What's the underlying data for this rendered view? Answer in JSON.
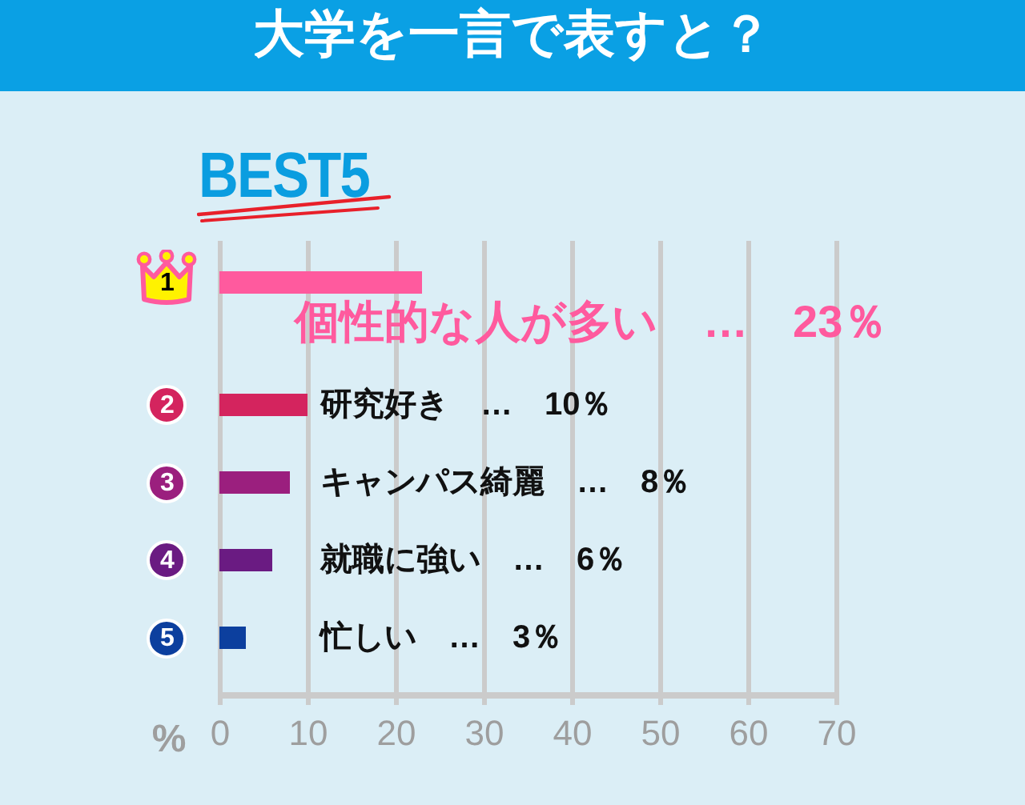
{
  "chart_data": {
    "type": "bar",
    "orientation": "horizontal",
    "title": "大学を一言で表すと？",
    "subtitle": "BEST5",
    "xlabel": "%",
    "categories": [
      "1",
      "2",
      "3",
      "4",
      "5"
    ],
    "values": [
      23,
      10,
      8,
      6,
      3
    ],
    "colors": [
      "#ff5a9e",
      "#d4245e",
      "#9b1f7e",
      "#6a1b82",
      "#0c3f9e"
    ],
    "value_labels": [
      "個性的な人が多い　…　23％",
      "研究好き　…　10％",
      "キャンパス綺麗　…　8％",
      "就職に強い　…　6％",
      "忙しい　…　3％"
    ],
    "xlim": [
      0,
      70
    ],
    "xticks": [
      0,
      10,
      20,
      30,
      40,
      50,
      60,
      70
    ],
    "grid": "x"
  }
}
